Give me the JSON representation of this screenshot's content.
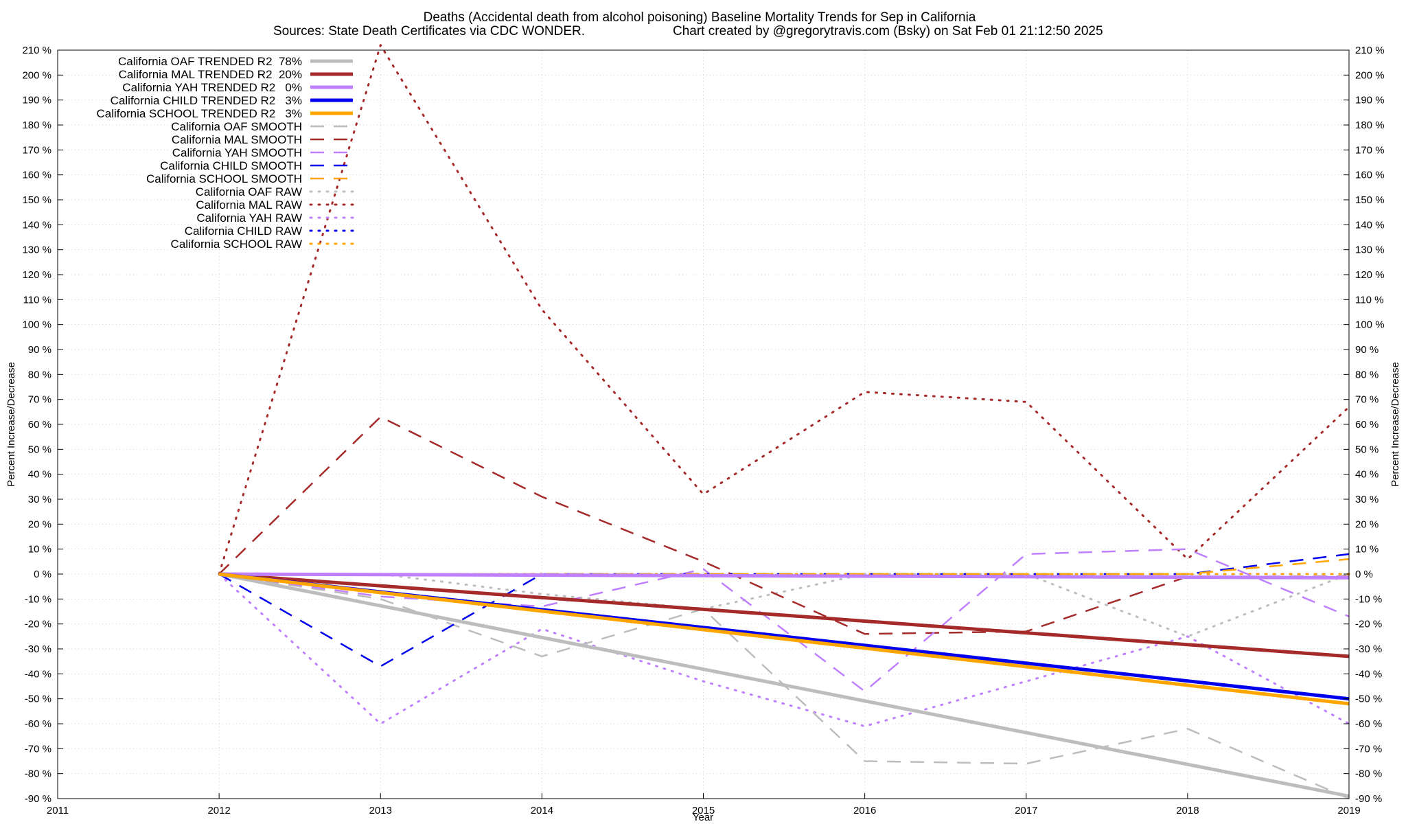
{
  "chart_data": {
    "type": "line",
    "title": "Deaths (Accidental death from alcohol poisoning)  Baseline Mortality Trends for Sep in California",
    "subtitle_left": "Sources: State Death Certificates via CDC WONDER.",
    "subtitle_right": "Chart created by @gregorytravis.com (Bsky) on Sat Feb 01 21:12:50 2025",
    "xlabel": "Year",
    "ylabel": "Percent Increase/Decrease",
    "xlim": [
      2011,
      2019
    ],
    "ylim": [
      -90,
      210
    ],
    "xticks": [
      2011,
      2012,
      2013,
      2014,
      2015,
      2016,
      2017,
      2018,
      2019
    ],
    "yticks": [
      210,
      200,
      190,
      180,
      170,
      160,
      150,
      140,
      130,
      120,
      110,
      100,
      90,
      80,
      70,
      60,
      50,
      40,
      30,
      20,
      10,
      0,
      -10,
      -20,
      -30,
      -40,
      -50,
      -60,
      -70,
      -80,
      -90
    ],
    "ytick_suffix": " %",
    "grid": true,
    "legend_position": "top-left",
    "colors": {
      "OAF": "#bdbdbd",
      "MAL": "#a52a2a",
      "YAH": "#bf80ff",
      "CHILD": "#0000ee",
      "SCHOOL": "#ffa500"
    },
    "series": [
      {
        "name": "California OAF TRENDED R2  78%",
        "group": "OAF",
        "style": "trended",
        "x": [
          2012,
          2019
        ],
        "y": [
          0,
          -89
        ]
      },
      {
        "name": "California MAL TRENDED R2  20%",
        "group": "MAL",
        "style": "trended",
        "x": [
          2012,
          2019
        ],
        "y": [
          0,
          -33
        ]
      },
      {
        "name": "California YAH TRENDED R2   0%",
        "group": "YAH",
        "style": "trended",
        "x": [
          2012,
          2019
        ],
        "y": [
          0,
          -1.5
        ]
      },
      {
        "name": "California CHILD TRENDED R2   3%",
        "group": "CHILD",
        "style": "trended",
        "x": [
          2012,
          2019
        ],
        "y": [
          0,
          -50
        ]
      },
      {
        "name": "California SCHOOL TRENDED R2   3%",
        "group": "SCHOOL",
        "style": "trended",
        "x": [
          2012,
          2019
        ],
        "y": [
          0,
          -52
        ]
      },
      {
        "name": "California OAF SMOOTH",
        "group": "OAF",
        "style": "smooth",
        "x": [
          2012,
          2013,
          2014,
          2015,
          2016,
          2017,
          2018,
          2019
        ],
        "y": [
          0,
          -10,
          -33,
          -14,
          -75,
          -76,
          -62,
          -90
        ]
      },
      {
        "name": "California MAL SMOOTH",
        "group": "MAL",
        "style": "smooth",
        "x": [
          2012,
          2013,
          2014,
          2015,
          2016,
          2017,
          2018,
          2019
        ],
        "y": [
          0,
          63,
          31,
          5,
          -24,
          -23,
          -1,
          -1
        ]
      },
      {
        "name": "California YAH SMOOTH",
        "group": "YAH",
        "style": "smooth",
        "x": [
          2012,
          2013,
          2014,
          2015,
          2016,
          2017,
          2018,
          2019
        ],
        "y": [
          0,
          -9,
          -13,
          2,
          -47,
          8,
          10,
          -17
        ]
      },
      {
        "name": "California CHILD SMOOTH",
        "group": "CHILD",
        "style": "smooth",
        "x": [
          2012,
          2013,
          2014,
          2015,
          2016,
          2017,
          2018,
          2019
        ],
        "y": [
          0,
          -37,
          0,
          0,
          0,
          0,
          0,
          8
        ]
      },
      {
        "name": "California SCHOOL SMOOTH",
        "group": "SCHOOL",
        "style": "smooth",
        "x": [
          2012,
          2013,
          2014,
          2015,
          2016,
          2017,
          2018,
          2019
        ],
        "y": [
          0,
          0,
          0,
          0,
          0,
          0,
          0,
          6
        ]
      },
      {
        "name": "California OAF RAW",
        "group": "OAF",
        "style": "raw",
        "x": [
          2012,
          2013,
          2014,
          2015,
          2016,
          2017,
          2018,
          2019
        ],
        "y": [
          0,
          0,
          -8,
          -14,
          0,
          0,
          -25,
          0
        ]
      },
      {
        "name": "California MAL RAW",
        "group": "MAL",
        "style": "raw",
        "x": [
          2012,
          2013,
          2014,
          2015,
          2016,
          2017,
          2018,
          2019
        ],
        "y": [
          0,
          212,
          106,
          32,
          73,
          69,
          6,
          67
        ]
      },
      {
        "name": "California YAH RAW",
        "group": "YAH",
        "style": "raw",
        "x": [
          2012,
          2013,
          2014,
          2015,
          2016,
          2017,
          2018,
          2019
        ],
        "y": [
          0,
          -60,
          -22,
          -43,
          -61,
          -43,
          -25,
          -60
        ]
      },
      {
        "name": "California CHILD RAW",
        "group": "CHILD",
        "style": "raw",
        "x": [
          2012,
          2013,
          2014,
          2015,
          2016,
          2017,
          2018,
          2019
        ],
        "y": [
          0,
          0,
          0,
          0,
          0,
          0,
          0,
          0
        ]
      },
      {
        "name": "California SCHOOL RAW",
        "group": "SCHOOL",
        "style": "raw",
        "x": [
          2012,
          2013,
          2014,
          2015,
          2016,
          2017,
          2018,
          2019
        ],
        "y": [
          0,
          0,
          0,
          0,
          0,
          0,
          0,
          0
        ]
      }
    ]
  }
}
